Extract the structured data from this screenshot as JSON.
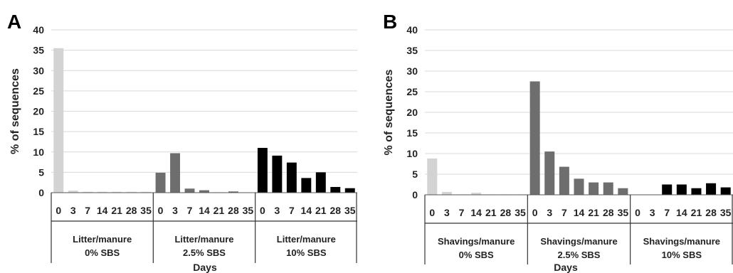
{
  "chart_data": [
    {
      "type": "bar",
      "panel_label": "A",
      "ylabel": "% of sequences",
      "xlabel": "Days",
      "ylim": [
        0,
        40
      ],
      "yticks": [
        "0",
        "5",
        "10",
        "15",
        "20",
        "25",
        "30",
        "35",
        "40"
      ],
      "grid": true,
      "day_ticks": [
        "0",
        "3",
        "7",
        "14",
        "21",
        "28",
        "35"
      ],
      "groups": [
        {
          "label_line1": "Litter/manure",
          "label_line2": "0% SBS",
          "color": "#d3d3d3",
          "values": [
            35.5,
            0.5,
            0.2,
            0.2,
            0.2,
            0.2,
            0.2
          ]
        },
        {
          "label_line1": "Litter/manure",
          "label_line2": "2.5% SBS",
          "color": "#6e6e6e",
          "values": [
            4.9,
            9.7,
            1.0,
            0.6,
            0.1,
            0.3,
            0.0
          ]
        },
        {
          "label_line1": "Litter/manure",
          "label_line2": "10% SBS",
          "color": "#000000",
          "values": [
            11.0,
            9.1,
            7.4,
            3.6,
            5.0,
            1.4,
            1.1
          ]
        }
      ]
    },
    {
      "type": "bar",
      "panel_label": "B",
      "ylabel": "% of sequences",
      "xlabel": "Days",
      "ylim": [
        0,
        40
      ],
      "yticks": [
        "0",
        "5",
        "10",
        "15",
        "20",
        "25",
        "30",
        "35",
        "40"
      ],
      "grid": true,
      "day_ticks": [
        "0",
        "3",
        "7",
        "14",
        "21",
        "28",
        "35"
      ],
      "groups": [
        {
          "label_line1": "Shavings/manure",
          "label_line2": "0% SBS",
          "color": "#d3d3d3",
          "values": [
            8.8,
            0.7,
            0.1,
            0.5,
            0.1,
            0.1,
            0.1
          ]
        },
        {
          "label_line1": "Shavings/manure",
          "label_line2": "2.5% SBS",
          "color": "#6e6e6e",
          "values": [
            27.5,
            10.5,
            6.8,
            3.9,
            3.0,
            3.0,
            1.6
          ]
        },
        {
          "label_line1": "Shavings/manure",
          "label_line2": "10% SBS",
          "color": "#000000",
          "values": [
            0.0,
            0.0,
            2.5,
            2.5,
            1.6,
            2.8,
            1.8
          ]
        }
      ]
    }
  ]
}
